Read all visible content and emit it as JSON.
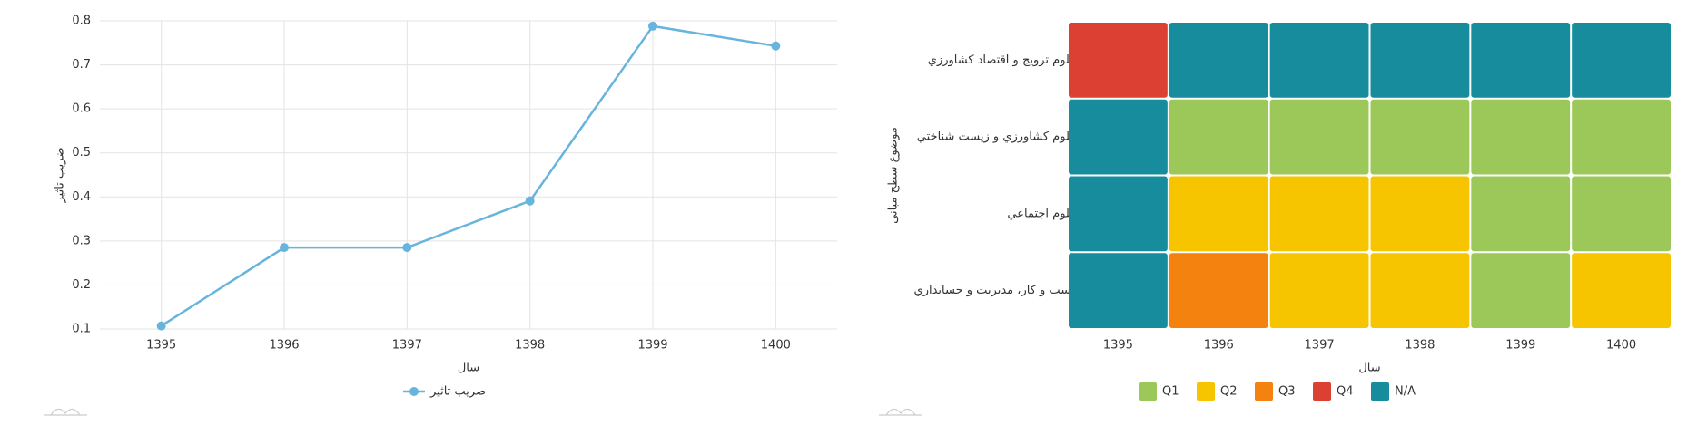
{
  "chart_data": [
    {
      "type": "line",
      "x_label": "سال",
      "y_label": "ضریب تاثیر",
      "categories": [
        "1395",
        "1396",
        "1397",
        "1398",
        "1399",
        "1400"
      ],
      "series": [
        {
          "name": "ضریب تاثیر",
          "color": "#67b4dc",
          "values": [
            0.107,
            0.285,
            0.285,
            0.391,
            0.788,
            0.743
          ]
        }
      ],
      "ylim": [
        0.1,
        0.8
      ],
      "yticks": [
        0.1,
        0.2,
        0.3,
        0.4,
        0.5,
        0.6,
        0.7,
        0.8
      ],
      "grid": true
    },
    {
      "type": "heatmap",
      "x_label": "سال",
      "y_label": "موضوع سطح مبانی",
      "categories": [
        "1395",
        "1396",
        "1397",
        "1398",
        "1399",
        "1400"
      ],
      "rows": [
        "علوم ترويج و اقتصاد کشاورزي",
        "علوم کشاورزي و زيست شناختي",
        "علوم اجتماعي",
        "کسب و کار، مديريت و حسابداري"
      ],
      "values": [
        [
          "Q4",
          "N/A",
          "N/A",
          "N/A",
          "N/A",
          "N/A"
        ],
        [
          "N/A",
          "Q1",
          "Q1",
          "Q1",
          "Q1",
          "Q1"
        ],
        [
          "N/A",
          "Q2",
          "Q2",
          "Q2",
          "Q1",
          "Q1"
        ],
        [
          "N/A",
          "Q3",
          "Q2",
          "Q2",
          "Q1",
          "Q2"
        ]
      ],
      "legend": [
        {
          "name": "Q1",
          "color": "#9cc85a"
        },
        {
          "name": "Q2",
          "color": "#f6c500"
        },
        {
          "name": "Q3",
          "color": "#f4820f"
        },
        {
          "name": "Q4",
          "color": "#dc4032"
        },
        {
          "name": "N/A",
          "color": "#168c9c"
        }
      ]
    }
  ]
}
